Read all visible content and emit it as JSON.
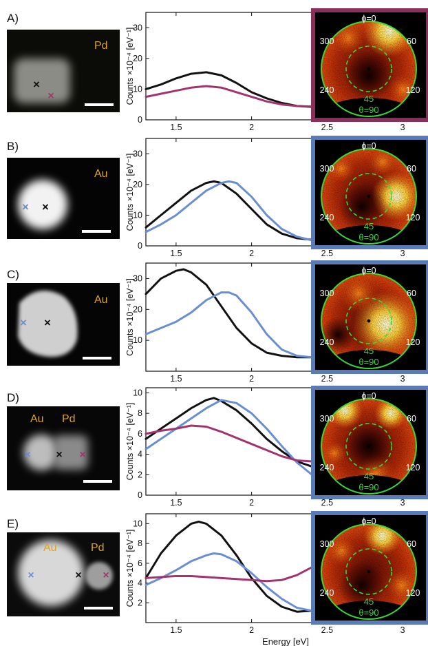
{
  "colors": {
    "black": "#111111",
    "blue": "#6a8fd0",
    "magenta": "#a3336e",
    "green": "#39d83a",
    "frame_magenta": "#8a2e5c",
    "frame_blue": "#5a7bb8",
    "element_label": "#e3a21a"
  },
  "xlabel": "Energy [eV]",
  "ylabel": "Counts ×10⁻⁴ [eV⁻¹]",
  "angle_labels": {
    "phi0": "ϕ=0",
    "a300": "300",
    "a60": "60",
    "a240": "240",
    "a120": "120",
    "a45": "45",
    "theta90": "θ=90"
  },
  "panels": [
    {
      "label": "A)",
      "elements": [
        "Pd"
      ],
      "frame": "magenta",
      "marks": [
        "black",
        "magenta"
      ]
    },
    {
      "label": "B)",
      "elements": [
        "Au"
      ],
      "frame": "blue",
      "marks": [
        "blue",
        "black"
      ]
    },
    {
      "label": "C)",
      "elements": [
        "Au"
      ],
      "frame": "blue",
      "marks": [
        "blue",
        "black"
      ]
    },
    {
      "label": "D)",
      "elements": [
        "Au",
        "Pd"
      ],
      "frame": "blue",
      "marks": [
        "blue",
        "black",
        "magenta"
      ]
    },
    {
      "label": "E)",
      "elements": [
        "Au",
        "Pd"
      ],
      "frame": "blue",
      "marks": [
        "blue",
        "black",
        "magenta"
      ]
    }
  ],
  "chart_data": [
    {
      "type": "line",
      "panel": "A)",
      "xlabel": "",
      "ylabel": "Counts ×10⁻⁴ [eV⁻¹]",
      "xlim": [
        1.3,
        3.15
      ],
      "ylim": [
        0,
        35
      ],
      "xticks": [
        1.5,
        2,
        2.5,
        3
      ],
      "yticks": [
        0,
        10,
        20,
        30
      ],
      "series": [
        {
          "color": "black",
          "x": [
            1.3,
            1.4,
            1.5,
            1.6,
            1.7,
            1.8,
            1.9,
            2.0,
            2.1,
            2.2,
            2.3,
            2.4,
            2.5,
            2.6,
            2.7,
            2.8,
            2.9,
            3.0,
            3.1,
            3.15
          ],
          "y": [
            10,
            11.5,
            13.5,
            15,
            15.5,
            14.5,
            12,
            9,
            7,
            5.5,
            4.5,
            4.2,
            4.3,
            5,
            5.5,
            5.5,
            5,
            4,
            3,
            2.5
          ]
        },
        {
          "color": "magenta",
          "x": [
            1.3,
            1.4,
            1.5,
            1.6,
            1.7,
            1.8,
            1.9,
            2.0,
            2.1,
            2.2,
            2.3,
            2.4,
            2.5,
            2.6,
            2.7,
            2.8,
            2.9,
            3.0,
            3.1,
            3.15
          ],
          "y": [
            7.5,
            8.5,
            9.5,
            10.5,
            11,
            10.5,
            9,
            7.5,
            6,
            5,
            4.5,
            4.3,
            4.3,
            4.6,
            5,
            5.2,
            5.1,
            5,
            5,
            5
          ]
        }
      ]
    },
    {
      "type": "line",
      "panel": "B)",
      "xlabel": "",
      "ylabel": "Counts ×10⁻⁴ [eV⁻¹]",
      "xlim": [
        1.3,
        3.15
      ],
      "ylim": [
        0,
        35
      ],
      "xticks": [
        1.5,
        2,
        2.5,
        3
      ],
      "yticks": [
        0,
        10,
        20,
        30
      ],
      "series": [
        {
          "color": "black",
          "x": [
            1.3,
            1.4,
            1.5,
            1.6,
            1.7,
            1.75,
            1.8,
            1.9,
            2.0,
            2.1,
            2.2,
            2.3,
            2.4,
            2.5,
            2.6,
            2.7,
            2.8,
            2.9,
            3.0,
            3.1,
            3.15
          ],
          "y": [
            6,
            10,
            14,
            18,
            20.5,
            21,
            20.5,
            17,
            12,
            7,
            4,
            2.5,
            2,
            2,
            2.5,
            3,
            3,
            2.5,
            2,
            1.5,
            1
          ]
        },
        {
          "color": "blue",
          "x": [
            1.3,
            1.4,
            1.5,
            1.6,
            1.7,
            1.8,
            1.85,
            1.9,
            2.0,
            2.1,
            2.2,
            2.3,
            2.4,
            2.5,
            2.6,
            2.7,
            2.8,
            2.9,
            3.0,
            3.1,
            3.15
          ],
          "y": [
            4.5,
            7,
            10,
            14,
            18,
            20.5,
            21,
            20.5,
            16,
            10,
            5.5,
            3,
            1.8,
            1.5,
            1.5,
            2,
            2.5,
            2.8,
            2.5,
            2,
            1.5
          ]
        }
      ]
    },
    {
      "type": "line",
      "panel": "C)",
      "xlabel": "",
      "ylabel": "Counts ×10⁻⁴ [eV⁻¹]",
      "xlim": [
        1.3,
        3.15
      ],
      "ylim": [
        0,
        35
      ],
      "xticks": [
        1.5,
        2,
        2.5,
        3
      ],
      "yticks": [
        10,
        20,
        30
      ],
      "series": [
        {
          "color": "black",
          "x": [
            1.3,
            1.4,
            1.5,
            1.55,
            1.6,
            1.7,
            1.8,
            1.9,
            2.0,
            2.1,
            2.2,
            2.3,
            2.4,
            2.5,
            2.6,
            2.7,
            2.8,
            2.9,
            3.0,
            3.1,
            3.15
          ],
          "y": [
            25,
            30,
            32.5,
            33,
            32,
            28,
            21,
            14,
            9,
            6,
            5,
            4.5,
            4.5,
            4.5,
            4.8,
            5,
            5,
            5,
            5.2,
            5.5,
            5.5
          ]
        },
        {
          "color": "blue",
          "x": [
            1.3,
            1.4,
            1.5,
            1.6,
            1.7,
            1.8,
            1.85,
            1.9,
            2.0,
            2.1,
            2.2,
            2.3,
            2.4,
            2.5,
            2.6,
            2.7,
            2.8,
            2.9,
            3.0,
            3.1,
            3.15
          ],
          "y": [
            12,
            14,
            16,
            19,
            23,
            25.5,
            25.5,
            24.5,
            19,
            12,
            7,
            5,
            4.5,
            4.3,
            4.3,
            4.5,
            4.8,
            5,
            4.8,
            4.5,
            4.5
          ]
        }
      ]
    },
    {
      "type": "line",
      "panel": "D)",
      "xlabel": "",
      "ylabel": "Counts ×10⁻⁴ [eV⁻¹]",
      "xlim": [
        1.3,
        3.15
      ],
      "ylim": [
        0,
        10.5
      ],
      "xticks": [
        1.5,
        2,
        2.5,
        3
      ],
      "yticks": [
        0,
        2,
        4,
        6,
        8,
        10
      ],
      "series": [
        {
          "color": "black",
          "x": [
            1.3,
            1.4,
            1.5,
            1.6,
            1.7,
            1.75,
            1.8,
            1.9,
            2.0,
            2.1,
            2.2,
            2.3,
            2.4,
            2.5,
            2.6,
            2.7,
            2.8,
            2.9,
            3.0,
            3.1,
            3.15
          ],
          "y": [
            5.5,
            6.5,
            7.5,
            8.5,
            9.3,
            9.5,
            9.2,
            8.3,
            7,
            5.5,
            4.3,
            3.3,
            2.8,
            2.6,
            2.5,
            2.5,
            2.3,
            2.0,
            1.6,
            1.1,
            0.8
          ]
        },
        {
          "color": "blue",
          "x": [
            1.3,
            1.4,
            1.5,
            1.6,
            1.7,
            1.8,
            1.9,
            2.0,
            2.1,
            2.2,
            2.3,
            2.4,
            2.5,
            2.6,
            2.7,
            2.8,
            2.9,
            3.0,
            3.1,
            3.15
          ],
          "y": [
            4.5,
            5.5,
            6.5,
            7.5,
            8.5,
            9.3,
            9.0,
            8.0,
            6.5,
            4.8,
            3.2,
            2.0,
            1.6,
            1.7,
            2.2,
            2.9,
            3.2,
            2.9,
            2.5,
            2.3
          ]
        },
        {
          "color": "magenta",
          "x": [
            1.3,
            1.4,
            1.5,
            1.6,
            1.7,
            1.8,
            1.9,
            2.0,
            2.1,
            2.2,
            2.3,
            2.4,
            2.5,
            2.6,
            2.7,
            2.8,
            2.9,
            3.0,
            3.1,
            3.15
          ],
          "y": [
            6,
            6.3,
            6.5,
            6.8,
            6.7,
            6.2,
            5.6,
            5.0,
            4.4,
            3.8,
            3.4,
            3.3,
            3.6,
            4.2,
            4.8,
            5.0,
            4.8,
            4.4,
            4.0,
            3.8
          ]
        }
      ]
    },
    {
      "type": "line",
      "panel": "E)",
      "xlabel": "Energy [eV]",
      "ylabel": "Counts ×10⁻⁴ [eV⁻¹]",
      "xlim": [
        1.3,
        3.15
      ],
      "ylim": [
        0,
        11
      ],
      "xticks": [
        1.5,
        2,
        2.5,
        3
      ],
      "yticks": [
        2,
        4,
        6,
        8,
        10
      ],
      "series": [
        {
          "color": "black",
          "x": [
            1.3,
            1.4,
            1.5,
            1.6,
            1.65,
            1.7,
            1.8,
            1.9,
            2.0,
            2.1,
            2.2,
            2.3,
            2.4,
            2.5,
            2.6,
            2.7,
            2.8,
            2.9,
            3.0,
            3.1,
            3.15
          ],
          "y": [
            4.5,
            7,
            8.8,
            10,
            10.2,
            10,
            8.8,
            6.8,
            4.5,
            2.7,
            1.6,
            1.1,
            1.2,
            1.6,
            2.2,
            2.8,
            3.2,
            3.3,
            3.0,
            2.7,
            2.6
          ]
        },
        {
          "color": "blue",
          "x": [
            1.3,
            1.4,
            1.5,
            1.6,
            1.7,
            1.75,
            1.8,
            1.9,
            2.0,
            2.1,
            2.2,
            2.3,
            2.4,
            2.5,
            2.6,
            2.7,
            2.8,
            2.9,
            3.0,
            3.1,
            3.15
          ],
          "y": [
            3.8,
            4.5,
            5.3,
            6.2,
            6.8,
            7.0,
            6.9,
            6.2,
            5.0,
            3.6,
            2.4,
            1.5,
            1.2,
            1.4,
            1.9,
            2.5,
            3.0,
            3.2,
            3.0,
            2.7,
            2.5
          ]
        },
        {
          "color": "magenta",
          "x": [
            1.3,
            1.4,
            1.5,
            1.6,
            1.7,
            1.8,
            1.9,
            2.0,
            2.1,
            2.2,
            2.3,
            2.4,
            2.5,
            2.6,
            2.7,
            2.8,
            2.9,
            3.0,
            3.1,
            3.15
          ],
          "y": [
            4.5,
            4.6,
            4.7,
            4.7,
            4.6,
            4.5,
            4.4,
            4.3,
            4.2,
            4.3,
            4.8,
            5.6,
            6.6,
            7.6,
            8.2,
            8.2,
            7.8,
            7.0,
            6.0,
            5.5
          ]
        }
      ]
    }
  ]
}
